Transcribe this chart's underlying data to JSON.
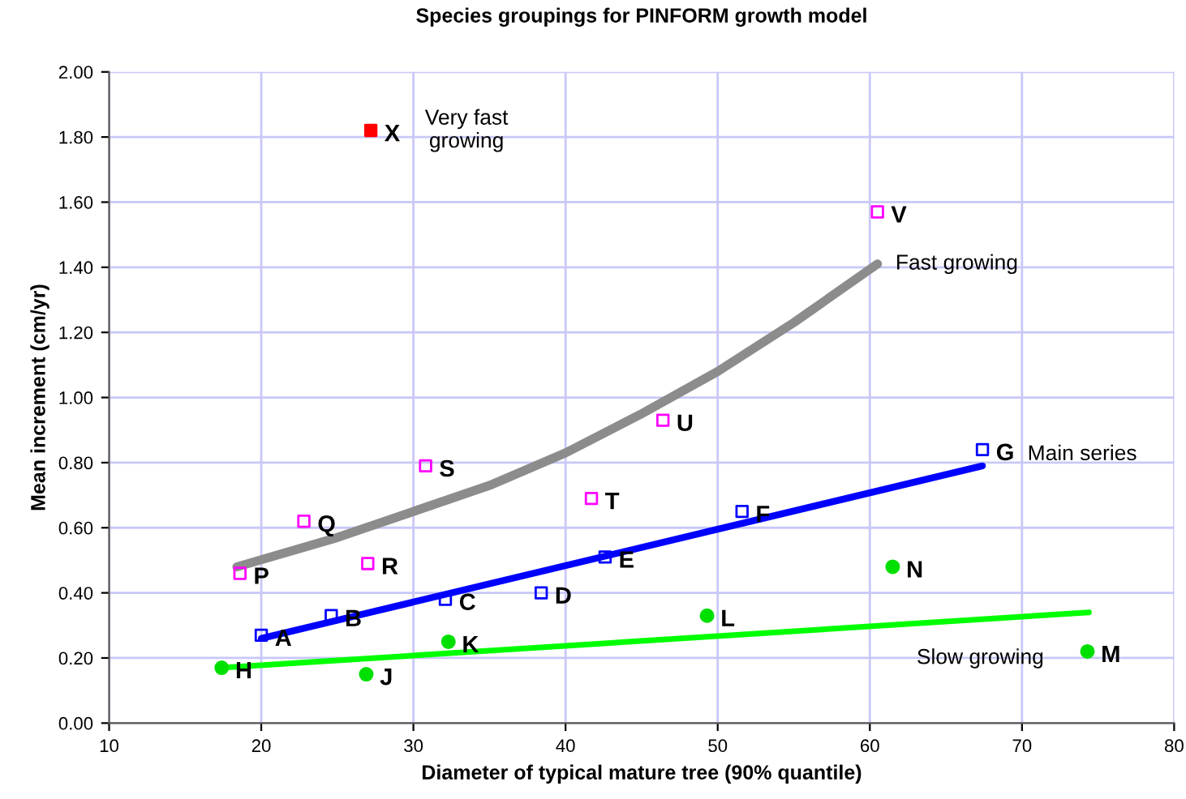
{
  "chart_data": {
    "type": "scatter",
    "title": "Species groupings for PINFORM growth model",
    "xlabel": "Diameter of typical mature tree (90% quantile)",
    "ylabel": "Mean increment (cm/yr)",
    "xlim": [
      10,
      80
    ],
    "xticks": [
      10,
      20,
      30,
      40,
      50,
      60,
      70,
      80
    ],
    "ylim": [
      0,
      2
    ],
    "yticks": [
      {
        "value": 0,
        "label": "0.00"
      },
      {
        "value": 0.2,
        "label": "0.20"
      },
      {
        "value": 0.4,
        "label": "0.40"
      },
      {
        "value": 0.6,
        "label": "0.60"
      },
      {
        "value": 0.8,
        "label": "0.80"
      },
      {
        "value": 1.0,
        "label": "1.00"
      },
      {
        "value": 1.2,
        "label": "1.20"
      },
      {
        "value": 1.4,
        "label": "1.40"
      },
      {
        "value": 1.6,
        "label": "1.60"
      },
      {
        "value": 1.8,
        "label": "1.80"
      },
      {
        "value": 2.0,
        "label": "2.00"
      }
    ],
    "grid": true,
    "legend": false,
    "series": [
      {
        "type": "line",
        "name": "Fast growing",
        "color": "#8c8c8c",
        "x": [
          18.4,
          25,
          30,
          35,
          40,
          45,
          50,
          55,
          60.5
        ],
        "values": [
          0.48,
          0.57,
          0.65,
          0.73,
          0.83,
          0.95,
          1.08,
          1.23,
          1.41
        ]
      },
      {
        "type": "line",
        "name": "Main series",
        "color": "#0000ff",
        "x": [
          20.0,
          67.4
        ],
        "values": [
          0.26,
          0.79
        ]
      },
      {
        "type": "line",
        "name": "Slow growing",
        "color": "#00ff00",
        "x": [
          17.4,
          74.4
        ],
        "values": [
          0.17,
          0.34
        ]
      },
      {
        "marker": "square",
        "color": "#ff00ff",
        "x": [
          18.6,
          22.8,
          27.0,
          30.8,
          41.7,
          46.4,
          60.5
        ],
        "values": [
          0.46,
          0.62,
          0.49,
          0.79,
          0.69,
          0.93,
          1.57
        ]
      },
      {
        "marker": "square",
        "color": "#0000ff",
        "x": [
          20.0,
          24.6,
          32.1,
          38.4,
          42.6,
          51.6,
          67.4
        ],
        "values": [
          0.27,
          0.33,
          0.38,
          0.4,
          0.51,
          0.65,
          0.84
        ]
      },
      {
        "marker": "circle",
        "color": "#00e000",
        "x": [
          17.4,
          26.9,
          32.3,
          49.3,
          61.5,
          74.3
        ],
        "values": [
          0.17,
          0.15,
          0.25,
          0.33,
          0.48,
          0.22
        ]
      },
      {
        "marker": "square",
        "name": "Very fast\ngrowing",
        "color": "#ff0000",
        "x": [
          27.2
        ],
        "values": [
          1.82
        ]
      }
    ],
    "annotations": [
      {
        "text": "P",
        "x": 18.6,
        "y": 0.46
      },
      {
        "text": "Q",
        "x": 22.8,
        "y": 0.62
      },
      {
        "text": "R",
        "x": 27.0,
        "y": 0.49
      },
      {
        "text": "S",
        "x": 30.8,
        "y": 0.79
      },
      {
        "text": "T",
        "x": 41.7,
        "y": 0.69
      },
      {
        "text": "U",
        "x": 46.4,
        "y": 0.93
      },
      {
        "text": "V",
        "x": 60.5,
        "y": 1.57
      },
      {
        "text": "A",
        "x": 20.0,
        "y": 0.27
      },
      {
        "text": "B",
        "x": 24.6,
        "y": 0.33
      },
      {
        "text": "C",
        "x": 32.1,
        "y": 0.38
      },
      {
        "text": "D",
        "x": 38.4,
        "y": 0.4
      },
      {
        "text": "E",
        "x": 42.6,
        "y": 0.51
      },
      {
        "text": "F",
        "x": 51.6,
        "y": 0.65
      },
      {
        "text": "G",
        "x": 67.4,
        "y": 0.84
      },
      {
        "text": "H",
        "x": 17.4,
        "y": 0.17
      },
      {
        "text": "J",
        "x": 26.9,
        "y": 0.15
      },
      {
        "text": "K",
        "x": 32.3,
        "y": 0.25
      },
      {
        "text": "L",
        "x": 49.3,
        "y": 0.33
      },
      {
        "text": "N",
        "x": 61.5,
        "y": 0.48
      },
      {
        "text": "M",
        "x": 74.3,
        "y": 0.22
      },
      {
        "text": "X",
        "x": 27.2,
        "y": 1.82
      }
    ]
  }
}
